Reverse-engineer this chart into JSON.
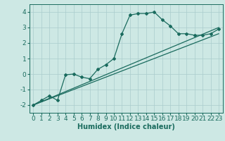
{
  "xlabel": "Humidex (Indice chaleur)",
  "ylabel": "",
  "background_color": "#cde8e4",
  "line_color": "#1a6b5e",
  "grid_color": "#aacccc",
  "xlim": [
    -0.5,
    23.5
  ],
  "ylim": [
    -2.5,
    4.5
  ],
  "xticks": [
    0,
    1,
    2,
    3,
    4,
    5,
    6,
    7,
    8,
    9,
    10,
    11,
    12,
    13,
    14,
    15,
    16,
    17,
    18,
    19,
    20,
    21,
    22,
    23
  ],
  "yticks": [
    -2,
    -1,
    0,
    1,
    2,
    3,
    4
  ],
  "series1_x": [
    0,
    1,
    2,
    3,
    4,
    5,
    6,
    7,
    8,
    9,
    10,
    11,
    12,
    13,
    14,
    15,
    16,
    17,
    18,
    19,
    20,
    21,
    22,
    23
  ],
  "series1_y": [
    -2.0,
    -1.7,
    -1.4,
    -1.7,
    -0.05,
    0.0,
    -0.2,
    -0.3,
    0.3,
    0.6,
    1.0,
    2.6,
    3.8,
    3.9,
    3.9,
    4.0,
    3.5,
    3.1,
    2.6,
    2.6,
    2.5,
    2.5,
    2.6,
    2.9
  ],
  "series2_x": [
    0,
    23
  ],
  "series2_y": [
    -2.0,
    3.0
  ],
  "series3_x": [
    0,
    23
  ],
  "series3_y": [
    -2.0,
    2.6
  ],
  "marker": "D",
  "markersize": 2.0,
  "linewidth": 0.9,
  "fontsize_label": 7,
  "fontsize_tick": 6.5
}
